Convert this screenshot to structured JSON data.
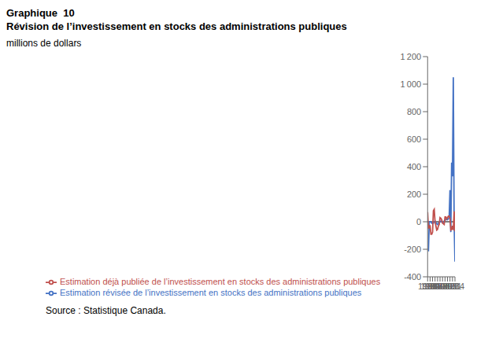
{
  "chart_data": {
    "type": "line",
    "title": "Graphique  10",
    "subtitle": "Révision de l’investissement en stocks des administrations publiques",
    "ylabel": "millions de dollars",
    "annotations": [
      "Source : Statistique Canada."
    ],
    "x": [
      1981,
      1982,
      1983,
      1984,
      1985,
      1986,
      1987,
      1988,
      1989,
      1990,
      1991,
      1992,
      1993,
      1994,
      1995,
      1996,
      1997,
      1998,
      1999,
      2000,
      2001,
      2002,
      2003,
      2004,
      2005,
      2006,
      2007,
      2008,
      2009,
      2010,
      2011,
      2012,
      2013,
      2014
    ],
    "series": [
      {
        "name": "Estimation révisée de l’investissement en stocks des administrations publiques",
        "color": "#4472C4",
        "values": [
          null,
          -215,
          0,
          0,
          0,
          -10,
          -10,
          -10,
          0,
          5,
          -5,
          -15,
          -20,
          -10,
          -5,
          0,
          5,
          0,
          -5,
          -5,
          5,
          10,
          15,
          20,
          15,
          20,
          30,
          230,
          -75,
          430,
          330,
          1050,
          0,
          -290
        ]
      },
      {
        "name": "Estimation déjà publiée de l’investissement en stocks des administrations publiques",
        "color": "#C0504D",
        "values": [
          70,
          -50,
          -30,
          -30,
          -90,
          -90,
          -75,
          80,
          90,
          0,
          -30,
          -60,
          -55,
          -30,
          -20,
          30,
          25,
          15,
          -10,
          -15,
          -20,
          35,
          35,
          20,
          30,
          40,
          40,
          25,
          -60,
          -55,
          -30,
          -60,
          75,
          -70
        ]
      }
    ],
    "xlim": [
      1981,
      2014
    ],
    "xticks": [
      1981,
      1984,
      1987,
      1990,
      1993,
      1996,
      1999,
      2002,
      2005,
      2008,
      2011,
      2014
    ],
    "ylim": [
      -400,
      1200
    ],
    "yticks": [
      -400,
      -200,
      0,
      200,
      400,
      600,
      800,
      {
        "value": 1000,
        "label": "1 000"
      },
      {
        "value": 1200,
        "label": "1 200"
      }
    ],
    "grid": false,
    "legend": "bottom"
  }
}
